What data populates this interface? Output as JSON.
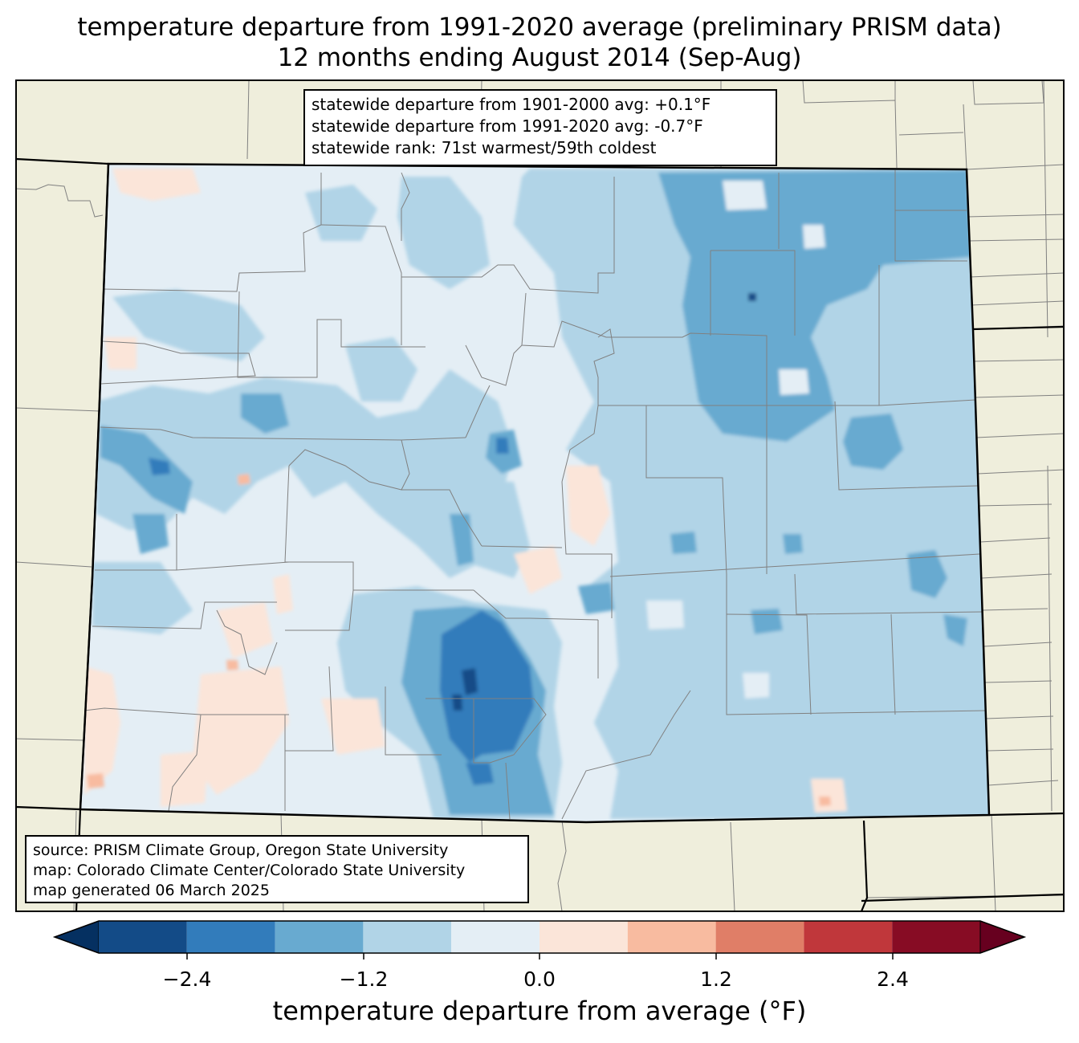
{
  "title": {
    "line1": "temperature departure from 1991-2020 average (preliminary PRISM data)",
    "line2": "12 months ending August 2014 (Sep-Aug)"
  },
  "stats": {
    "line1": "statewide departure from 1901-2000 avg: +0.1°F",
    "line2": "statewide departure from 1991-2020 avg: -0.7°F",
    "line3": "statewide rank: 71st warmest/59th coldest"
  },
  "credits": {
    "line1": "source: PRISM Climate Group, Oregon State University",
    "line2": "map: Colorado Climate Center/Colorado State University",
    "line3": "map generated 06 March 2025"
  },
  "colorbar": {
    "label": "temperature departure from average (°F)",
    "ticks": [
      "−2.4",
      "−1.2",
      "0.0",
      "1.2",
      "2.4"
    ],
    "bins": [
      {
        "from": -3.0,
        "to": -2.4,
        "color": "#134b87"
      },
      {
        "from": -2.4,
        "to": -1.8,
        "color": "#327cbb"
      },
      {
        "from": -1.8,
        "to": -1.2,
        "color": "#68aad0"
      },
      {
        "from": -1.2,
        "to": -0.6,
        "color": "#b1d4e7"
      },
      {
        "from": -0.6,
        "to": 0.0,
        "color": "#e4eef5"
      },
      {
        "from": 0.0,
        "to": 0.6,
        "color": "#fbe5d9"
      },
      {
        "from": 0.6,
        "to": 1.2,
        "color": "#f8bba0"
      },
      {
        "from": 1.2,
        "to": 1.8,
        "color": "#e07e67"
      },
      {
        "from": 1.8,
        "to": 2.4,
        "color": "#c0373b"
      },
      {
        "from": 2.4,
        "to": 3.0,
        "color": "#870c24"
      }
    ],
    "under_color": "#053061",
    "over_color": "#67001f"
  },
  "colors": {
    "land": "#efeedc",
    "boundary": "#808080",
    "state_border": "#000000"
  }
}
